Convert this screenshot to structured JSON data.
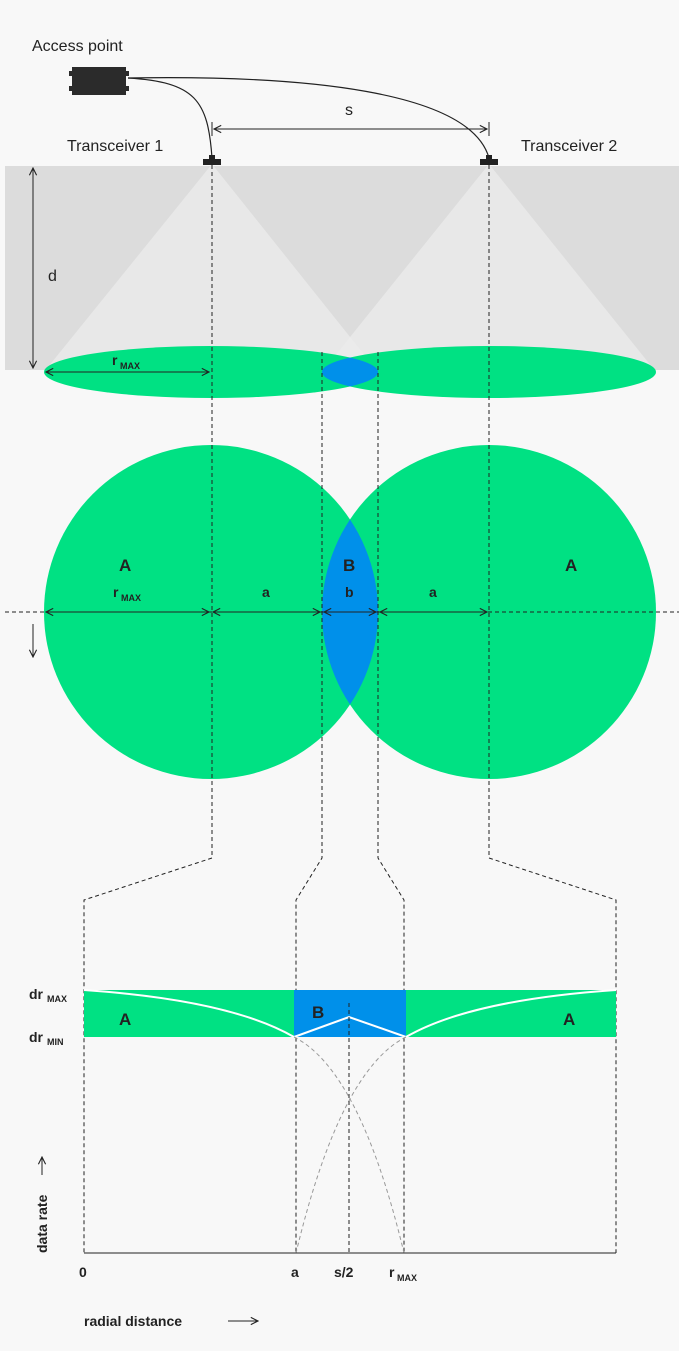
{
  "top": {
    "access_point": "Access point",
    "transceiver1": "Transceiver 1",
    "transceiver2": "Transceiver 2",
    "spacing": "s",
    "height": "d",
    "rmax_main": "r",
    "rmax_sub": "MAX"
  },
  "plan": {
    "zone_a_left": "A",
    "zone_a_right": "A",
    "zone_b": "B",
    "rmax_main": "r",
    "rmax_sub": "MAX",
    "a_left": "a",
    "b": "b",
    "a_right": "a"
  },
  "chart": {
    "drmax_main": "dr",
    "drmax_sub": "MAX",
    "drmin_main": "dr",
    "drmin_sub": "MIN",
    "zone_a_left": "A",
    "zone_b": "B",
    "zone_a_right": "A",
    "y_label": "data rate",
    "x_label": "radial distance",
    "tick_0": "0",
    "tick_a": "a",
    "tick_s2": "s/2",
    "tick_rmax_main": "r",
    "tick_rmax_sub": "MAX"
  },
  "colors": {
    "green": "#00e183",
    "blue": "#0090ea",
    "gray_band": "#dcdcdc",
    "line": "#222222"
  }
}
